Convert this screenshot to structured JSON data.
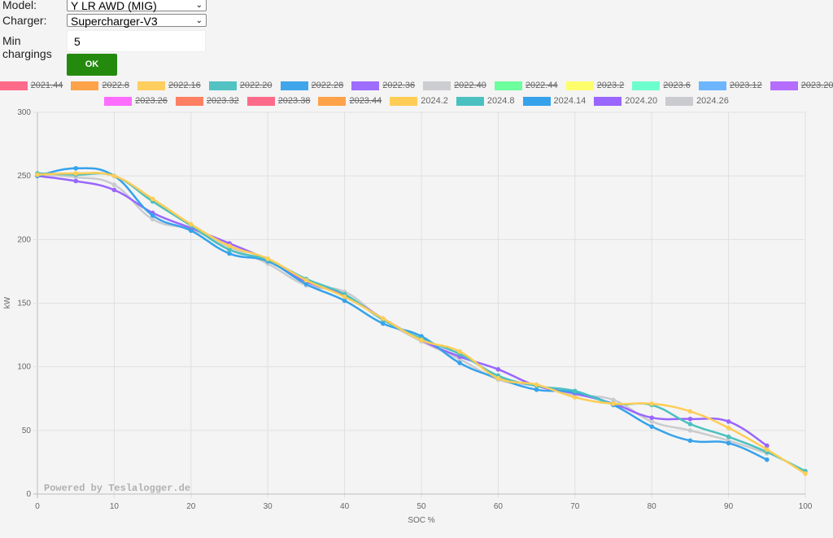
{
  "form": {
    "model_label": "Model:",
    "model_value": "Y LR AWD (MIG)",
    "charger_label": "Charger:",
    "charger_value": "Supercharger-V3",
    "min_label": "Min chargings",
    "min_value": "5",
    "ok_label": "OK"
  },
  "chart_data": {
    "type": "line",
    "xlabel": "SOC %",
    "ylabel": "kW",
    "xlim": [
      0,
      100
    ],
    "ylim": [
      0,
      300
    ],
    "xticks": [
      "0",
      "10",
      "20",
      "30",
      "40",
      "50",
      "60",
      "70",
      "80",
      "90",
      "100"
    ],
    "yticks": [
      "0",
      "50",
      "100",
      "150",
      "200",
      "250",
      "300"
    ],
    "grid": true,
    "legend_placement": "top",
    "watermark": "Powered by Teslalogger.de",
    "x": [
      0,
      5,
      10,
      15,
      20,
      25,
      30,
      35,
      40,
      45,
      50,
      55,
      60,
      65,
      70,
      75,
      80,
      85,
      90,
      95,
      100
    ],
    "legend": [
      {
        "name": "2021.44",
        "color": "#ff6384",
        "hidden": true
      },
      {
        "name": "2022.8",
        "color": "#ff9f40",
        "hidden": true
      },
      {
        "name": "2022.16",
        "color": "#ffcd56",
        "hidden": true
      },
      {
        "name": "2022.20",
        "color": "#4bc0c0",
        "hidden": true
      },
      {
        "name": "2022.28",
        "color": "#36a2eb",
        "hidden": true
      },
      {
        "name": "2022.36",
        "color": "#9966ff",
        "hidden": true
      },
      {
        "name": "2022.40",
        "color": "#c9cbcf",
        "hidden": true
      },
      {
        "name": "2022.44",
        "color": "#66ff99",
        "hidden": true
      },
      {
        "name": "2023.2",
        "color": "#ffff66",
        "hidden": true
      },
      {
        "name": "2023.6",
        "color": "#66ffcc",
        "hidden": true
      },
      {
        "name": "2023.12",
        "color": "#66b3ff",
        "hidden": true
      },
      {
        "name": "2023.20",
        "color": "#b266ff",
        "hidden": true
      },
      {
        "name": "2023.26",
        "color": "#ff66ff",
        "hidden": true
      },
      {
        "name": "2023.32",
        "color": "#ff7a5c",
        "hidden": true
      },
      {
        "name": "2023.38",
        "color": "#ff6384",
        "hidden": true
      },
      {
        "name": "2023.44",
        "color": "#ff9f40",
        "hidden": true
      },
      {
        "name": "2024.2",
        "color": "#ffcd56",
        "hidden": false
      },
      {
        "name": "2024.8",
        "color": "#4bc0c0",
        "hidden": false
      },
      {
        "name": "2024.14",
        "color": "#36a2eb",
        "hidden": false
      },
      {
        "name": "2024.20",
        "color": "#9966ff",
        "hidden": false
      },
      {
        "name": "2024.26",
        "color": "#c9cbcf",
        "hidden": false
      }
    ],
    "series": [
      {
        "name": "2024.26",
        "color": "#c9cbcf",
        "values": [
          251,
          249,
          243,
          216,
          208,
          194,
          181,
          164,
          159,
          137,
          120,
          106,
          90,
          85,
          78,
          74,
          57,
          50,
          42,
          32,
          null
        ]
      },
      {
        "name": "2024.20",
        "color": "#9966ff",
        "values": [
          250,
          246,
          239,
          221,
          209,
          197,
          184,
          167,
          156,
          138,
          121,
          108,
          98,
          85,
          79,
          71,
          60,
          59,
          57,
          38,
          null
        ]
      },
      {
        "name": "2024.14",
        "color": "#36a2eb",
        "values": [
          250,
          256,
          250,
          219,
          207,
          189,
          183,
          165,
          152,
          134,
          124,
          103,
          91,
          82,
          80,
          70,
          53,
          42,
          40,
          27,
          null
        ]
      },
      {
        "name": "2024.8",
        "color": "#4bc0c0",
        "values": [
          252,
          251,
          250,
          230,
          211,
          192,
          184,
          169,
          157,
          137,
          122,
          110,
          93,
          85,
          81,
          71,
          70,
          55,
          45,
          33,
          18
        ]
      },
      {
        "name": "2024.2",
        "color": "#ffcd56",
        "values": [
          251,
          252,
          250,
          232,
          212,
          195,
          185,
          168,
          155,
          138,
          121,
          112,
          91,
          86,
          76,
          71,
          71,
          65,
          52,
          35,
          16
        ]
      }
    ]
  }
}
